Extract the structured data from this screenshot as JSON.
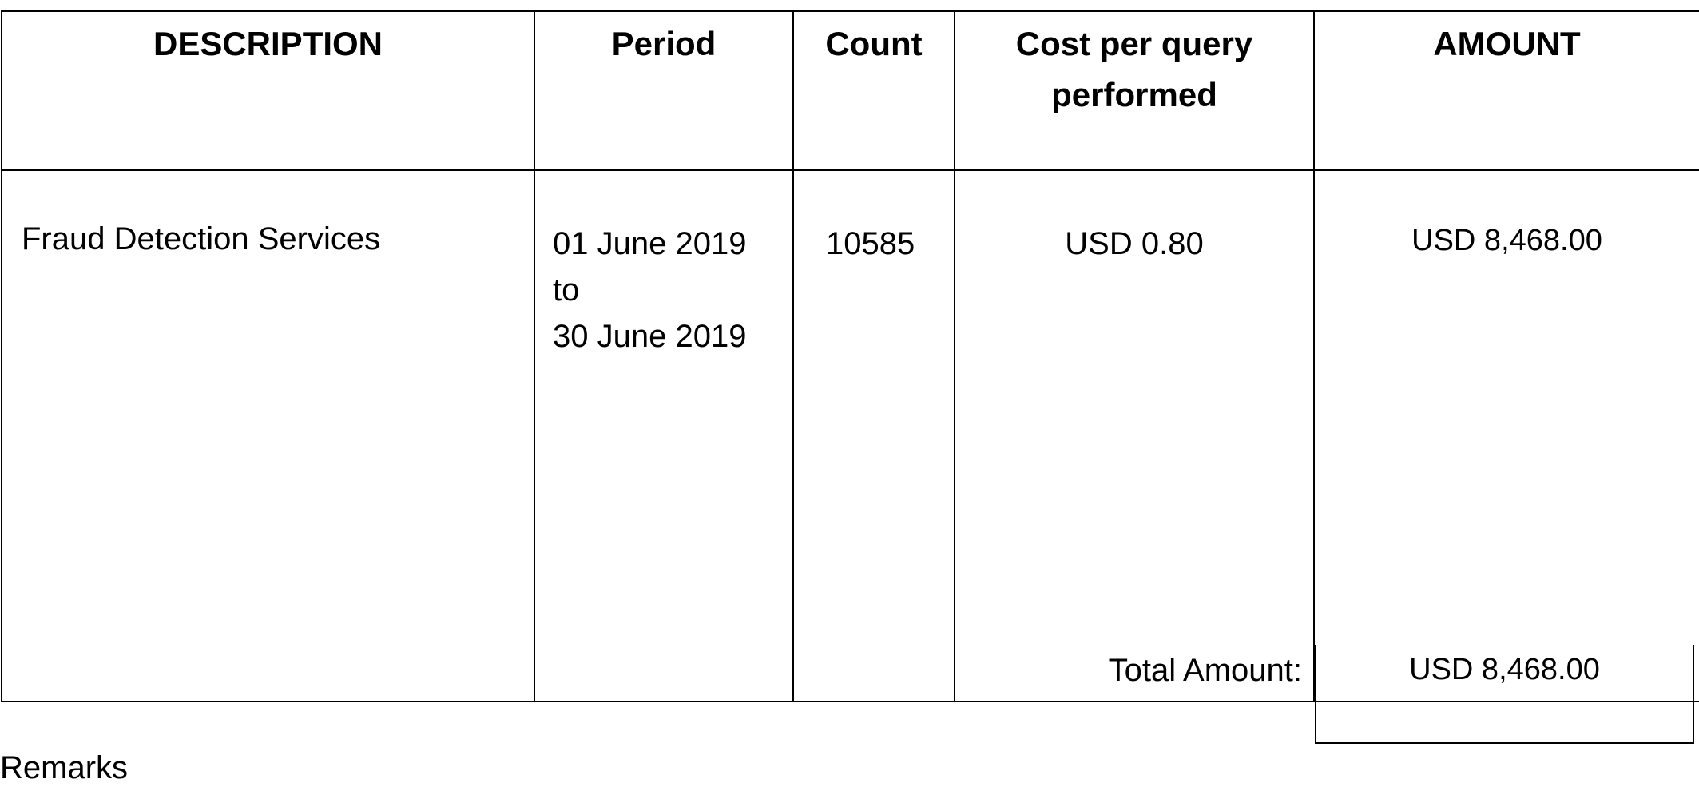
{
  "table": {
    "headers": {
      "description": "DESCRIPTION",
      "period": "Period",
      "count": "Count",
      "cost_per_query": "Cost per query performed",
      "amount": "AMOUNT"
    },
    "rows": [
      {
        "description": "Fraud Detection Services",
        "period_from": "01 June 2019",
        "period_to_word": "to",
        "period_to": "30 June 2019",
        "count": "10585",
        "cost_per_query": "USD  0.80",
        "amount": "USD 8,468.00"
      }
    ]
  },
  "total": {
    "label": "Total Amount:",
    "value": "USD 8,468.00"
  },
  "remarks": {
    "label": "Remarks"
  }
}
